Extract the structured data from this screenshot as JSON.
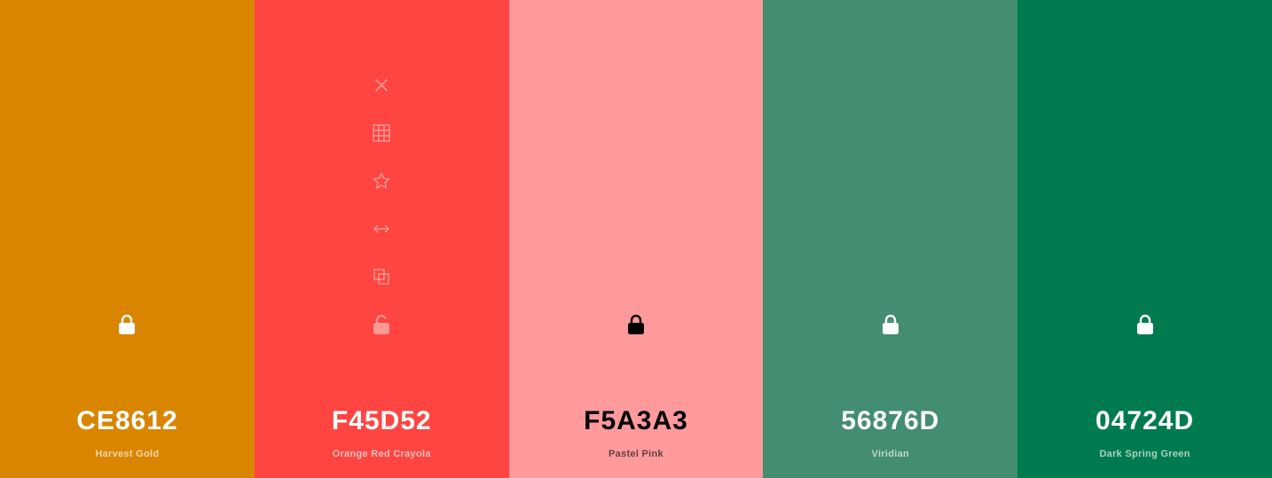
{
  "swatches": [
    {
      "hex": "CE8612",
      "name": "Harvest Gold",
      "bg": "#D98500",
      "text": "#FFFFFF",
      "sub": "rgba(255,255,255,0.65)",
      "lock": "#FFFFFF",
      "locked": true
    },
    {
      "hex": "F45D52",
      "name": "Orange Red Crayola",
      "bg": "#FF4541",
      "text": "#FFFFFF",
      "sub": "rgba(255,255,255,0.65)",
      "lock": "rgba(255,255,255,0.45)",
      "locked": false
    },
    {
      "hex": "F5A3A3",
      "name": "Pastel Pink",
      "bg": "#FF9A9C",
      "text": "#000000",
      "sub": "rgba(0,0,0,0.6)",
      "lock": "#000000",
      "locked": true
    },
    {
      "hex": "56876D",
      "name": "Viridian",
      "bg": "#438D70",
      "text": "#FFFFFF",
      "sub": "rgba(255,255,255,0.65)",
      "lock": "#FFFFFF",
      "locked": true
    },
    {
      "hex": "04724D",
      "name": "Dark Spring Green",
      "bg": "#007B4F",
      "text": "#FFFFFF",
      "sub": "rgba(255,255,255,0.65)",
      "lock": "#FFFFFF",
      "locked": true
    }
  ],
  "tools": [
    "close-icon",
    "shades-grid-icon",
    "star-icon",
    "drag-arrows-icon",
    "copy-icon"
  ],
  "tool_color": "rgba(255,255,255,0.45)"
}
